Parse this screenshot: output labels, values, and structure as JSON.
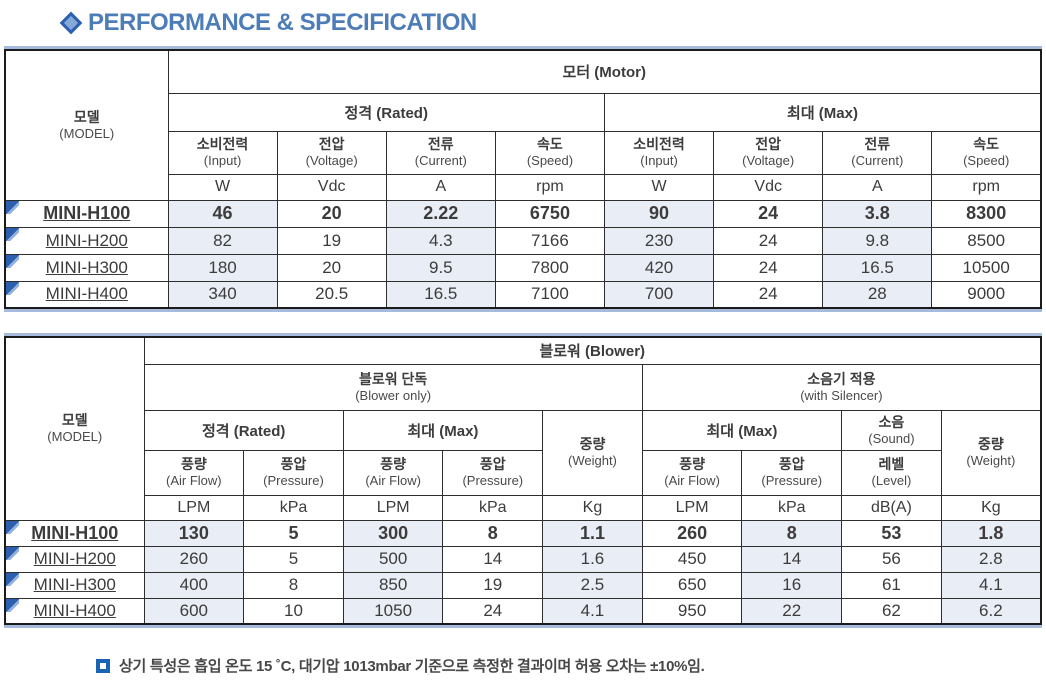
{
  "page": {
    "title": "PERFORMANCE & SPECIFICATION",
    "footnote": "상기 특성은 흡입 온도 15 ˚C,  대기압 1013mbar 기준으로 측정한 결과이며 허용 오차는 ±10%임."
  },
  "colors": {
    "title_blue": "#4d7db8",
    "accent_line": "#a6bbdb",
    "cell_fill": "#e9edf5",
    "marker_blue": "#2c5fae",
    "note_icon_blue": "#1b64b5"
  },
  "motor_table": {
    "model_label_ko": "모델",
    "model_label_en": "(MODEL)",
    "group_label": "모터 (Motor)",
    "rated_label": "정격 (Rated)",
    "max_label": "최대 (Max)",
    "columns": [
      {
        "ko": "소비전력",
        "en": "(Input)",
        "unit": "W"
      },
      {
        "ko": "전압",
        "en": "(Voltage)",
        "unit": "Vdc"
      },
      {
        "ko": "전류",
        "en": "(Current)",
        "unit": "A"
      },
      {
        "ko": "속도",
        "en": "(Speed)",
        "unit": "rpm"
      },
      {
        "ko": "소비전력",
        "en": "(Input)",
        "unit": "W"
      },
      {
        "ko": "전압",
        "en": "(Voltage)",
        "unit": "Vdc"
      },
      {
        "ko": "전류",
        "en": "(Current)",
        "unit": "A"
      },
      {
        "ko": "속도",
        "en": "(Speed)",
        "unit": "rpm"
      }
    ],
    "rows": [
      {
        "model": "MINI-H100",
        "values": [
          "46",
          "20",
          "2.22",
          "6750",
          "90",
          "24",
          "3.8",
          "8300"
        ]
      },
      {
        "model": "MINI-H200",
        "values": [
          "82",
          "19",
          "4.3",
          "7166",
          "230",
          "24",
          "9.8",
          "8500"
        ]
      },
      {
        "model": "MINI-H300",
        "values": [
          "180",
          "20",
          "9.5",
          "7800",
          "420",
          "24",
          "16.5",
          "10500"
        ]
      },
      {
        "model": "MINI-H400",
        "values": [
          "340",
          "20.5",
          "16.5",
          "7100",
          "700",
          "24",
          "28",
          "9000"
        ]
      }
    ]
  },
  "blower_table": {
    "model_label_ko": "모델",
    "model_label_en": "(MODEL)",
    "group_label": "블로워 (Blower)",
    "blower_only_ko": "블로워 단독",
    "blower_only_en": "(Blower only)",
    "silencer_ko": "소음기 적용",
    "silencer_en": "(with Silencer)",
    "rated_label": "정격 (Rated)",
    "max_label": "최대 (Max)",
    "max2_label": "최대 (Max)",
    "weight_ko": "중량",
    "weight_en": "(Weight)",
    "weight2_ko": "중량",
    "weight2_en": "(Weight)",
    "sound_ko": "소음",
    "sound_en": "(Sound)",
    "subcols": [
      {
        "ko": "풍량",
        "en": "(Air Flow)"
      },
      {
        "ko": "풍압",
        "en": "(Pressure)"
      },
      {
        "ko": "풍량",
        "en": "(Air Flow)"
      },
      {
        "ko": "풍압",
        "en": "(Pressure)"
      },
      {
        "ko": "풍량",
        "en": "(Air Flow)"
      },
      {
        "ko": "풍압",
        "en": "(Pressure)"
      },
      {
        "ko": "레벨",
        "en": "(Level)"
      }
    ],
    "units": [
      "LPM",
      "kPa",
      "LPM",
      "kPa",
      "Kg",
      "LPM",
      "kPa",
      "dB(A)",
      "Kg"
    ],
    "rows": [
      {
        "model": "MINI-H100",
        "values": [
          "130",
          "5",
          "300",
          "8",
          "1.1",
          "260",
          "8",
          "53",
          "1.8"
        ]
      },
      {
        "model": "MINI-H200",
        "values": [
          "260",
          "5",
          "500",
          "14",
          "1.6",
          "450",
          "14",
          "56",
          "2.8"
        ]
      },
      {
        "model": "MINI-H300",
        "values": [
          "400",
          "8",
          "850",
          "19",
          "2.5",
          "650",
          "16",
          "61",
          "4.1"
        ]
      },
      {
        "model": "MINI-H400",
        "values": [
          "600",
          "10",
          "1050",
          "24",
          "4.1",
          "950",
          "22",
          "62",
          "6.2"
        ]
      }
    ]
  }
}
